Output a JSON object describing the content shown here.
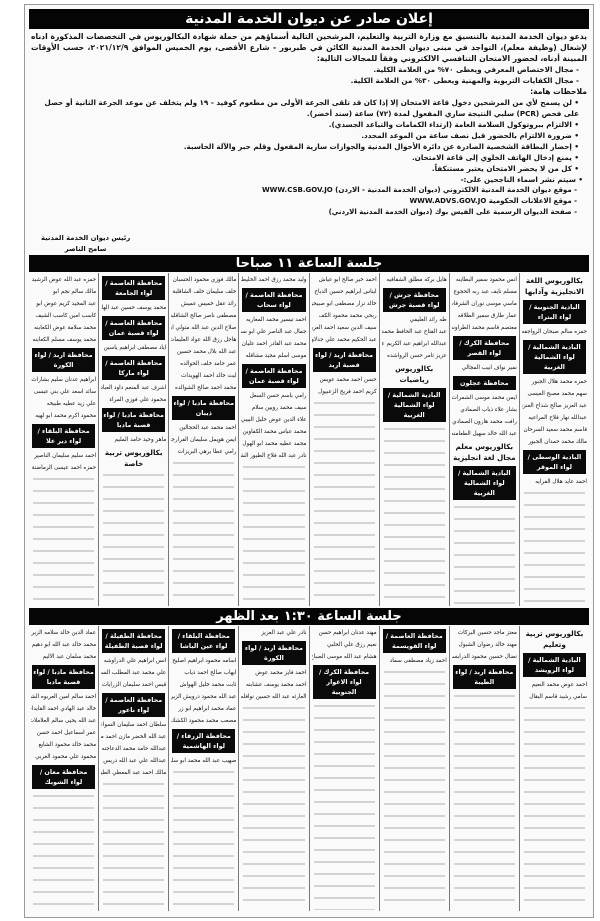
{
  "header": {
    "title": "إعلان صادر عن ديوان الخدمة المدنية",
    "intro": "يدعو ديوان الخدمة المدنية بالتنسيق مع وزارة التربية والتعليم، المرشحين التالية أسماؤهم من حملة شهادة البكالوريوس في التخصصات المذكورة ادناه لإشغال (وظيفة معلم)، التواجد في مبنى ديوان الخدمة المدنية الكائن في طبربور - شارع الأقصى، يوم الخميس الموافق ٢٠٢١/١٢/٩، حسب الأوقات المبينة أدناه، لحضور الامتحان التنافسي الالكتروني وفقاً للمجالات التالية:",
    "fields": [
      "- مجال الاختصاص المعرفي ويعطى ٧٠% من العلامة الكلية.",
      "- مجال الكفايات التربوية والمهنية ويعطى ٣٠% من العلامة الكلية."
    ],
    "notes_title": "ملاحظات هامة:",
    "notes": [
      "لن يسمح لأي من المرشحين دخول قاعة الامتحان إلا إذا كان قد تلقى الجرعة الأولى من مطعوم كوفيد - ١٩ ولم يتخلف عن موعد الجرعة الثانية أو حصل على فحص (PCR) سلبي النتيجة ساري المفعول لمدة (٧٢) ساعة (سند أخضر).",
      "الالتزام ببروتوكول السلامة العامة (ارتداء الكمامات والتباعد الجسدي).",
      "ضرورة الالتزام بالحضور قبل نصف ساعة من الموعد المحدد.",
      "إحضار البطاقة الشخصية الصادرة عن دائرة الأحوال المدنية والجوازات سارية المفعول وقلم حبر والآلة الحاسبة.",
      "يمنع إدخال الهاتف الخلوي إلى قاعة الامتحان.",
      "كل من لا يحضر الامتحان يعتبر مستنكفاً."
    ],
    "publish_title": "• سيتم نشر اسماء الناجحين على:-",
    "publish_links": [
      "- موقع ديوان الخدمة المدنية الالكتروني (ديوان الخدمة المدنية - الاردن) WWW.CSB.GOV.JO",
      "- موقع الاعلانات الحكومية WWW.ADVS.GOV.JO",
      "- صفحة الديوان الرسمية على الفيس بوك (ديوان الخدمة المدنية الاردني)"
    ],
    "signature": {
      "title": "رئيس ديوان الخدمة المدنية",
      "name": "سامح الناصر"
    }
  },
  "sessions": [
    {
      "title": "جلسة الساعة ١١ صباحا",
      "columns": [
        [
          {
            "t": "h",
            "v": "بكالوريوس اللغة الانجليزية وآدابها"
          },
          {
            "t": "b",
            "v": "البادية الجنوبية / لواء البتراء"
          },
          {
            "t": "n",
            "v": "حمزه سالم صبحان الرواجفه"
          },
          {
            "t": "b",
            "v": "البادية الشمالية / لواء الشمالية الغربية"
          },
          {
            "t": "n",
            "v": "حمزه محمد هلال الجبور"
          },
          {
            "t": "n",
            "v": "سهم محمد مصبح العيسى"
          },
          {
            "t": "n",
            "v": "عبد العزيز صالح شداح العنزي"
          },
          {
            "t": "n",
            "v": "عبدالله نهار فلاح المراعيه"
          },
          {
            "t": "n",
            "v": "قاسم محمد سعيد السرحان"
          },
          {
            "t": "n",
            "v": "مالك محمد حمدان الجبور"
          },
          {
            "t": "b",
            "v": "البادية الوسطى / لواء الموقر"
          },
          {
            "t": "n",
            "v": "احمد عايد هلال الفرايه"
          }
        ],
        [
          {
            "t": "n",
            "v": "انس محمود سمير البطاينه"
          },
          {
            "t": "n",
            "v": "مسلم نايف عبد ربه الحجوج"
          },
          {
            "t": "n",
            "v": "ماسي موسى نوران الشرفات"
          },
          {
            "t": "n",
            "v": "عمار طارق سمير الطلاقه"
          },
          {
            "t": "n",
            "v": "معتصم قاسم محمد الطراونه"
          },
          {
            "t": "b",
            "v": "محافظة الكرك / لواء القصر"
          },
          {
            "t": "n",
            "v": "نمير نواف ابيب المجالي"
          },
          {
            "t": "b",
            "v": "محافظة عجلون"
          },
          {
            "t": "n",
            "v": "ايمن محمد موسى الشمرات"
          },
          {
            "t": "n",
            "v": "بشار علاء ذياب الصمادي"
          },
          {
            "t": "n",
            "v": "رافت محمد هارون الصمادي"
          },
          {
            "t": "n",
            "v": "عبد الله خالد سهيل الطعامنه"
          },
          {
            "t": "h",
            "v": "بكالوريوس معلم مجال لغة انجليزية"
          },
          {
            "t": "b",
            "v": "البادية الشمالية / لواء الشمالية الغربية"
          }
        ],
        [
          {
            "t": "n",
            "v": "هايل بركه مطلق الشقاقيه"
          },
          {
            "t": "b",
            "v": "محافظة جرش / لواء قصبة جرش"
          },
          {
            "t": "n",
            "v": "طه رائد العليمي"
          },
          {
            "t": "n",
            "v": "عبد الفتاح عبد الحافظ محمد عبد ان"
          },
          {
            "t": "n",
            "v": "عبدالله ابراهيم عبد الكريم عويصي"
          },
          {
            "t": "n",
            "v": "عزيز تامر حسن الرواشده"
          },
          {
            "t": "h",
            "v": "بكالوريوس رياضيات"
          },
          {
            "t": "b",
            "v": "البادية الشمالية / لواء الشمالية الغربية"
          }
        ],
        [
          {
            "t": "n",
            "v": "احمد خير صالح ابو عياش"
          },
          {
            "t": "n",
            "v": "ايناس ابراهيم حسين الدباح"
          },
          {
            "t": "n",
            "v": "خالد نزار مصطفى ابو صبيحون"
          },
          {
            "t": "n",
            "v": "ربحي محمد محمود الكف"
          },
          {
            "t": "n",
            "v": "سيف الدين سعيد احمد العربي"
          },
          {
            "t": "n",
            "v": "عبد الحكيم محمد علي جدلاوي"
          },
          {
            "t": "b",
            "v": "محافظة اربد / لواء قصبة اربد"
          },
          {
            "t": "n",
            "v": "حسن احمد محمد عويس"
          },
          {
            "t": "n",
            "v": "كريم احمد فريح الزعبيول"
          }
        ],
        [
          {
            "t": "n",
            "v": "وليد محمد رزق احمد الخليط"
          },
          {
            "t": "b",
            "v": "محافظة العاصمة / لواء سحاب"
          },
          {
            "t": "n",
            "v": "احمد تيسير محمد المعاريه"
          },
          {
            "t": "n",
            "v": "جمال عبد الناصر علي ابو سماك"
          },
          {
            "t": "n",
            "v": "محمد عبد القادر احمد عليان"
          },
          {
            "t": "n",
            "v": "موسى اسلم مجيد مشاقله"
          },
          {
            "t": "b",
            "v": "محافظة العاصمة / لواء قصبة عمان"
          },
          {
            "t": "n",
            "v": "رامي باسم حسن السعل"
          },
          {
            "t": "n",
            "v": "سيف محمد رويين سلام"
          },
          {
            "t": "n",
            "v": "علاء الدين عوض خليل البيبي"
          },
          {
            "t": "n",
            "v": "محمد عباس محمد الكفاوين"
          },
          {
            "t": "n",
            "v": "محمد عطيه محمد ابو الهول"
          },
          {
            "t": "n",
            "v": "نادر عبد الله فلاح الطيور الشلالي"
          }
        ],
        [
          {
            "t": "n",
            "v": "مالك فوزي محمود الحسبان"
          },
          {
            "t": "n",
            "v": "خلف سليمان خلف الشاقلبة"
          },
          {
            "t": "n",
            "v": "رائد عقل خميس عميش"
          },
          {
            "t": "n",
            "v": "مصطفى ناصر صالح الشاقلبة"
          },
          {
            "t": "n",
            "v": "صلاح الدين عبد الله متولي ابو الهول"
          },
          {
            "t": "n",
            "v": "هاجل رزق الله عواد العليمات"
          },
          {
            "t": "n",
            "v": "عبد الله بلال محمد حسين"
          },
          {
            "t": "n",
            "v": "عمر حامد خلف الحوالده"
          },
          {
            "t": "n",
            "v": "ليث خالد احمد الهويدات"
          },
          {
            "t": "n",
            "v": "محمد احمد صالح الشوالده"
          },
          {
            "t": "b",
            "v": "محافظة مادبا / لواء ذيبان"
          },
          {
            "t": "n",
            "v": "احمد محمد عبد الحجالين"
          },
          {
            "t": "n",
            "v": "ايمن هويمل سليمان الفرارجه"
          },
          {
            "t": "n",
            "v": "رامي عطا برهي البريزات"
          }
        ],
        [
          {
            "t": "b",
            "v": "محافظة العاصمة / لواء الجامعة"
          },
          {
            "t": "n",
            "v": "محمد يوسف حسين عبد الهادي"
          },
          {
            "t": "b",
            "v": "محافظة العاصمة / لواء قصبة عمان"
          },
          {
            "t": "n",
            "v": "اياد مصطفى ابراهيم ياسين"
          },
          {
            "t": "b",
            "v": "محافظة العاصمة / لواء ماركا"
          },
          {
            "t": "n",
            "v": "اشرف عبد المنعم داود العبادي"
          },
          {
            "t": "n",
            "v": "محمود علي فوزي المراء"
          },
          {
            "t": "b",
            "v": "محافظة مادبا / لواء قصبة مادبا"
          },
          {
            "t": "n",
            "v": "ماهر وحيد حامد المليم"
          },
          {
            "t": "h",
            "v": "بكالوريوس تربية خاصة"
          }
        ],
        [
          {
            "t": "n",
            "v": "حمزه عبد الله عوض الرشيد"
          },
          {
            "t": "n",
            "v": "مالك سالم نجم ابو"
          },
          {
            "t": "n",
            "v": "عبد المجيد كريم عوض ابو"
          },
          {
            "t": "n",
            "v": "كاسب امين كاسب الشيف"
          },
          {
            "t": "n",
            "v": "محمد سلامة عوض الكعابنه"
          },
          {
            "t": "n",
            "v": "محمد يوسف مسلم الكعابنه"
          },
          {
            "t": "b",
            "v": "محافظة اربد / لواء الكورة"
          },
          {
            "t": "n",
            "v": "ابراهيم عدنان سليم بشارات"
          },
          {
            "t": "n",
            "v": "سائد اسعد علي بني عيسى"
          },
          {
            "t": "n",
            "v": "علي زيد عطيه طبيخه"
          },
          {
            "t": "n",
            "v": "محمود اكرم محمد ابو لهيه"
          },
          {
            "t": "b",
            "v": "محافظة البلقاء / لواء دير علا"
          },
          {
            "t": "n",
            "v": "احمد سليم سليمان الناصير"
          },
          {
            "t": "n",
            "v": "حمزه احمد عيسى الرماضنة"
          }
        ]
      ]
    },
    {
      "title": "جلسة الساعة ١:٣٠ بعد الظهر",
      "columns": [
        [
          {
            "t": "h",
            "v": "بكالوريوس تربية وتعليم"
          },
          {
            "t": "b",
            "v": "البادية الشمالية / لواء الرويشد"
          },
          {
            "t": "n",
            "v": "احمد عوض محمد النعيم"
          },
          {
            "t": "n",
            "v": "سامي رشيد قاسم البقال"
          }
        ],
        [
          {
            "t": "n",
            "v": "معتز ماجد حسين البركات"
          },
          {
            "t": "n",
            "v": "مهند خالد رضوان الشبول"
          },
          {
            "t": "n",
            "v": "نضال حسين محمود الدرابسه"
          },
          {
            "t": "b",
            "v": "محافظة اربد / لواء الطيبة"
          }
        ],
        [
          {
            "t": "b",
            "v": "محافظة العاصمة / لواء القويسمة"
          },
          {
            "t": "n",
            "v": "احمد زياد مصطفى سماد"
          }
        ],
        [
          {
            "t": "n",
            "v": "مهند عدنان ابراهيم حسن"
          },
          {
            "t": "n",
            "v": "نعيم رزق علي الحلبي"
          },
          {
            "t": "n",
            "v": "هشام عبد الله موسى الصباح"
          },
          {
            "t": "b",
            "v": "محافظة الكرك / لواء الاغوار الجنوبية"
          }
        ],
        [
          {
            "t": "n",
            "v": "نادر علي عبد العزيز"
          },
          {
            "t": "b",
            "v": "محافظة اربد / لواء الكورة"
          },
          {
            "t": "n",
            "v": "احمد فايز محمد عوض"
          },
          {
            "t": "n",
            "v": "احمد محمد يوسف عشابنه"
          },
          {
            "t": "n",
            "v": "العارثه عبد الله حسين نوافله"
          }
        ],
        [
          {
            "t": "b",
            "v": "محافظة البلقاء / لواء عين الباشا"
          },
          {
            "t": "n",
            "v": "اسامه محمود ابراهيم اصليح"
          },
          {
            "t": "n",
            "v": "ايهاب صالح احمد ذياب"
          },
          {
            "t": "n",
            "v": "ثابت محمد خليل الهواش"
          },
          {
            "t": "n",
            "v": "عبد الله محمود درويش الزيرات"
          },
          {
            "t": "n",
            "v": "عماد محمد ابراهيم ابو زر"
          },
          {
            "t": "n",
            "v": "مصعب محمد محمود الكشك"
          },
          {
            "t": "b",
            "v": "محافظة الزرقاء / لواء الهاشمية"
          },
          {
            "t": "n",
            "v": "صهيب عبد الله محمد ابو سليله"
          }
        ],
        [
          {
            "t": "b",
            "v": "محافظة الطفيلة / لواء قصبة الطفيلة"
          },
          {
            "t": "n",
            "v": "انس ابراهيم علي الدراوشه"
          },
          {
            "t": "n",
            "v": "علي محمد عبد المطلب السعود"
          },
          {
            "t": "n",
            "v": "قيس احمد سليمان الزرايات"
          },
          {
            "t": "b",
            "v": "محافظة العاصمة / لواء ناعور"
          },
          {
            "t": "n",
            "v": "سلطان احمد سليمان السواعير"
          },
          {
            "t": "n",
            "v": "عبد الله الخضر مازن احمد مصلح"
          },
          {
            "t": "n",
            "v": "عبدالله حامد محمد الدعاجنه"
          },
          {
            "t": "n",
            "v": "عبدالله علي عبد الله دريس"
          },
          {
            "t": "n",
            "v": "مالك احمد عبد المعطي الطيوب"
          }
        ],
        [
          {
            "t": "n",
            "v": "عماد الدين خالد سلامه الزيرات"
          },
          {
            "t": "n",
            "v": "محمد خالد عبد الله ابو دهيم"
          },
          {
            "t": "n",
            "v": "محمد سلمان عبد الاليم"
          },
          {
            "t": "b",
            "v": "محافظة مادبا / لواء قصبة مادبا"
          },
          {
            "t": "n",
            "v": "احمد سالم امين العربوه الشوابكه"
          },
          {
            "t": "n",
            "v": "خالد عبد الهادي احمد القايدات"
          },
          {
            "t": "n",
            "v": "عبد الله يحيى سالم العلاملات"
          },
          {
            "t": "n",
            "v": "عمر اسماعيل احمد حسن"
          },
          {
            "t": "n",
            "v": "محمد خالد محمود الشايع"
          },
          {
            "t": "n",
            "v": "محمود علي محمود الغربي"
          },
          {
            "t": "b",
            "v": "محافظة معان / لواء الشوبك"
          }
        ]
      ]
    }
  ]
}
